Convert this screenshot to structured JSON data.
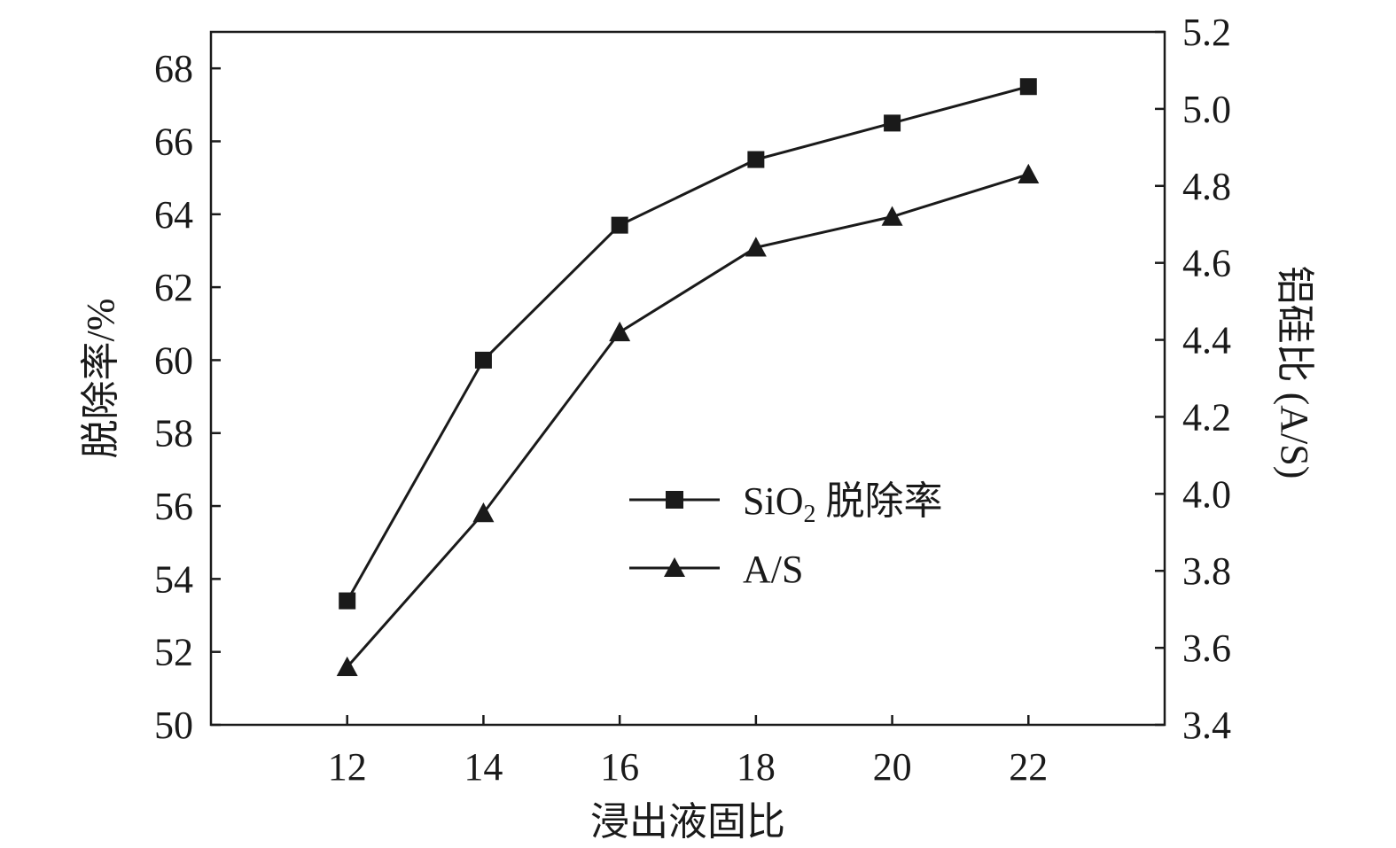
{
  "chart_data": {
    "type": "line",
    "xlabel": "浸出液固比",
    "ylabel_left": "脱除率/%",
    "ylabel_right": "铝硅比 (A/S)",
    "x": [
      12,
      14,
      16,
      18,
      20,
      22
    ],
    "xlim": [
      10,
      24
    ],
    "x_ticks": [
      "12",
      "14",
      "16",
      "18",
      "20",
      "22"
    ],
    "ylim_left": [
      50,
      69
    ],
    "y_ticks_left": [
      "50",
      "52",
      "54",
      "56",
      "58",
      "60",
      "62",
      "64",
      "66",
      "68"
    ],
    "ylim_right": [
      3.4,
      5.2
    ],
    "y_ticks_right": [
      "3.4",
      "3.6",
      "3.8",
      "4.0",
      "4.2",
      "4.4",
      "4.6",
      "4.8",
      "5.0",
      "5.2"
    ],
    "grid": false,
    "legend_position": "center-right",
    "legend": {
      "items": [
        {
          "label_main": "SiO",
          "label_sub": "2",
          "label_rest": " 脱除率",
          "marker": "square"
        },
        {
          "label_main": "A/S",
          "marker": "triangle"
        }
      ]
    },
    "series": [
      {
        "axis": "left",
        "marker": "square",
        "values": [
          53.4,
          60.0,
          63.7,
          65.5,
          66.5,
          67.5
        ]
      },
      {
        "axis": "right",
        "marker": "triangle",
        "values": [
          3.55,
          3.95,
          4.42,
          4.64,
          4.72,
          4.83
        ]
      }
    ],
    "colors": {
      "line": "#1a1a1a",
      "background": "#ffffff"
    }
  }
}
